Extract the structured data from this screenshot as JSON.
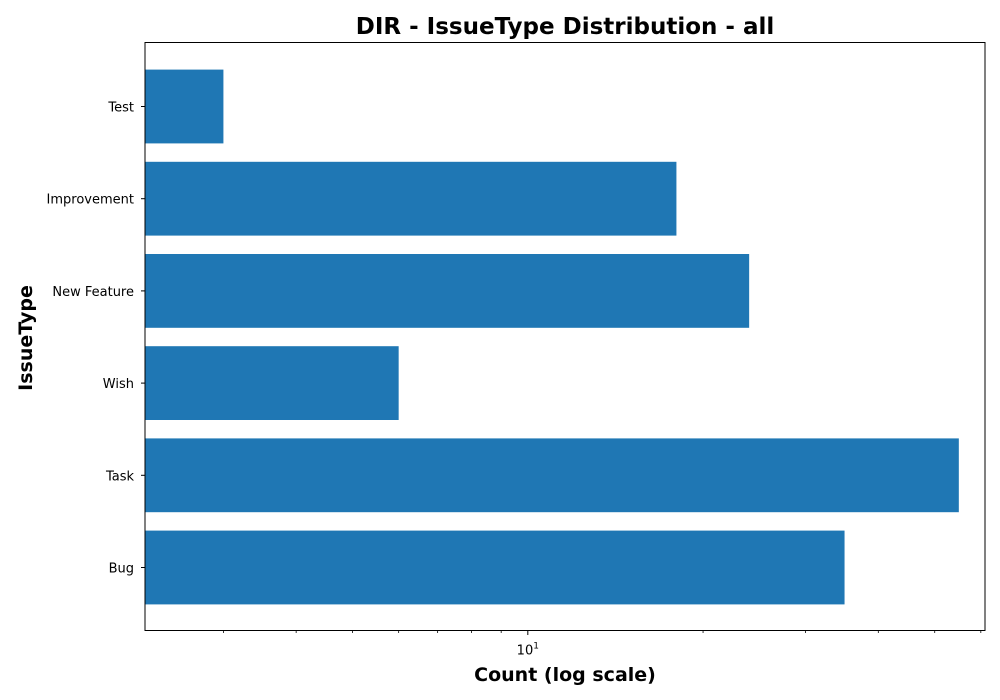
{
  "chart_data": {
    "type": "bar",
    "orientation": "horizontal",
    "title": "DIR - IssueType Distribution - all",
    "xlabel": "Count (log scale)",
    "ylabel": "IssueType",
    "x_scale": "log",
    "xlim": [
      2.2,
      61
    ],
    "x_tick_label": {
      "base": "10",
      "exponent": "1",
      "value": 10
    },
    "categories": [
      "Bug",
      "Task",
      "Wish",
      "New Feature",
      "Improvement",
      "Test"
    ],
    "values": [
      35,
      55,
      6,
      24,
      18,
      3
    ],
    "color": "#1f77b4",
    "grid": false
  }
}
